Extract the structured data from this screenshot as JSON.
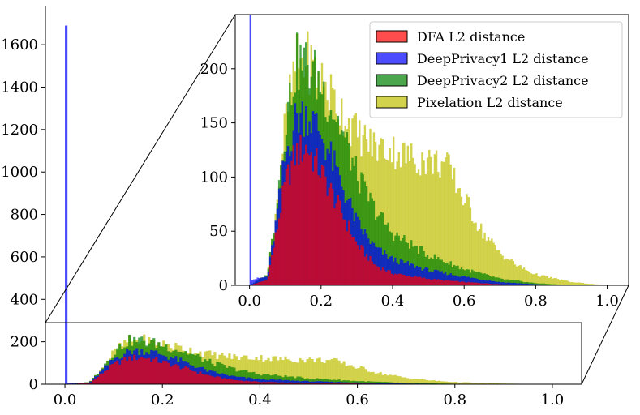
{
  "chart_data": {
    "type": "histogram",
    "title": "",
    "xlabel": "",
    "ylabel": "",
    "bins": 200,
    "bin_width": 0.005,
    "main_axes": {
      "xlim": [
        -0.04,
        1.06
      ],
      "ylim": [
        0,
        1780
      ],
      "x_ticks": [
        "0.0",
        "0.2",
        "0.4",
        "0.6",
        "0.8",
        "1.0"
      ],
      "y_ticks": [
        "0",
        "200",
        "400",
        "600",
        "800",
        "1000",
        "1200",
        "1400",
        "1600"
      ]
    },
    "inset": {
      "xlim": [
        -0.04,
        1.06
      ],
      "ylim": [
        0,
        250
      ],
      "x_ticks": [
        "0.0",
        "0.2",
        "0.4",
        "0.6",
        "0.8",
        "1.0"
      ],
      "y_ticks": [
        "0",
        "50",
        "100",
        "150",
        "200"
      ],
      "zoom_region_y": [
        0,
        290
      ]
    },
    "legend": {
      "position": "upper right of inset",
      "entries": [
        "DFA L2 distance",
        "DeepPrivacy1 L2 distance",
        "DeepPrivacy2 L2 distance",
        "Pixelation L2 distance"
      ]
    },
    "series": [
      {
        "name": "DFA L2 distance",
        "color": "#ff0000",
        "opacity": 0.7,
        "stack_order": 4,
        "profile": [
          {
            "x": 0.0,
            "y": 0
          },
          {
            "x": 0.05,
            "y": 5
          },
          {
            "x": 0.07,
            "y": 40
          },
          {
            "x": 0.1,
            "y": 95
          },
          {
            "x": 0.13,
            "y": 122
          },
          {
            "x": 0.16,
            "y": 128
          },
          {
            "x": 0.2,
            "y": 105
          },
          {
            "x": 0.25,
            "y": 72
          },
          {
            "x": 0.3,
            "y": 38
          },
          {
            "x": 0.35,
            "y": 19
          },
          {
            "x": 0.4,
            "y": 11
          },
          {
            "x": 0.5,
            "y": 6
          },
          {
            "x": 0.6,
            "y": 3
          },
          {
            "x": 0.7,
            "y": 1
          },
          {
            "x": 0.8,
            "y": 0
          }
        ]
      },
      {
        "name": "DeepPrivacy1 L2 distance",
        "color": "#0000ff",
        "opacity": 0.7,
        "stack_order": 3,
        "spike": {
          "x": 0.0,
          "value": 1690
        },
        "profile": [
          {
            "x": 0.0,
            "y": 5
          },
          {
            "x": 0.05,
            "y": 8
          },
          {
            "x": 0.07,
            "y": 50
          },
          {
            "x": 0.1,
            "y": 120
          },
          {
            "x": 0.13,
            "y": 155
          },
          {
            "x": 0.16,
            "y": 160
          },
          {
            "x": 0.2,
            "y": 140
          },
          {
            "x": 0.25,
            "y": 100
          },
          {
            "x": 0.3,
            "y": 58
          },
          {
            "x": 0.35,
            "y": 35
          },
          {
            "x": 0.4,
            "y": 24
          },
          {
            "x": 0.5,
            "y": 14
          },
          {
            "x": 0.6,
            "y": 8
          },
          {
            "x": 0.7,
            "y": 3
          },
          {
            "x": 0.8,
            "y": 1
          },
          {
            "x": 0.9,
            "y": 0
          }
        ]
      },
      {
        "name": "DeepPrivacy2 L2 distance",
        "color": "#008000",
        "opacity": 0.7,
        "stack_order": 2,
        "profile": [
          {
            "x": 0.0,
            "y": 0
          },
          {
            "x": 0.05,
            "y": 10
          },
          {
            "x": 0.07,
            "y": 60
          },
          {
            "x": 0.1,
            "y": 150
          },
          {
            "x": 0.13,
            "y": 205
          },
          {
            "x": 0.16,
            "y": 205
          },
          {
            "x": 0.2,
            "y": 185
          },
          {
            "x": 0.25,
            "y": 150
          },
          {
            "x": 0.3,
            "y": 102
          },
          {
            "x": 0.35,
            "y": 70
          },
          {
            "x": 0.4,
            "y": 48
          },
          {
            "x": 0.5,
            "y": 28
          },
          {
            "x": 0.6,
            "y": 15
          },
          {
            "x": 0.7,
            "y": 6
          },
          {
            "x": 0.8,
            "y": 2
          },
          {
            "x": 0.9,
            "y": 0
          }
        ]
      },
      {
        "name": "Pixelation L2 distance",
        "color": "#bfbf00",
        "opacity": 0.7,
        "stack_order": 1,
        "profile": [
          {
            "x": 0.0,
            "y": 0
          },
          {
            "x": 0.05,
            "y": 10
          },
          {
            "x": 0.07,
            "y": 60
          },
          {
            "x": 0.1,
            "y": 150
          },
          {
            "x": 0.13,
            "y": 205
          },
          {
            "x": 0.16,
            "y": 208
          },
          {
            "x": 0.2,
            "y": 190
          },
          {
            "x": 0.25,
            "y": 165
          },
          {
            "x": 0.3,
            "y": 140
          },
          {
            "x": 0.35,
            "y": 128
          },
          {
            "x": 0.4,
            "y": 125
          },
          {
            "x": 0.45,
            "y": 118
          },
          {
            "x": 0.5,
            "y": 115
          },
          {
            "x": 0.55,
            "y": 112
          },
          {
            "x": 0.6,
            "y": 80
          },
          {
            "x": 0.65,
            "y": 50
          },
          {
            "x": 0.7,
            "y": 30
          },
          {
            "x": 0.75,
            "y": 18
          },
          {
            "x": 0.8,
            "y": 10
          },
          {
            "x": 0.9,
            "y": 3
          },
          {
            "x": 1.0,
            "y": 0
          }
        ]
      }
    ]
  }
}
